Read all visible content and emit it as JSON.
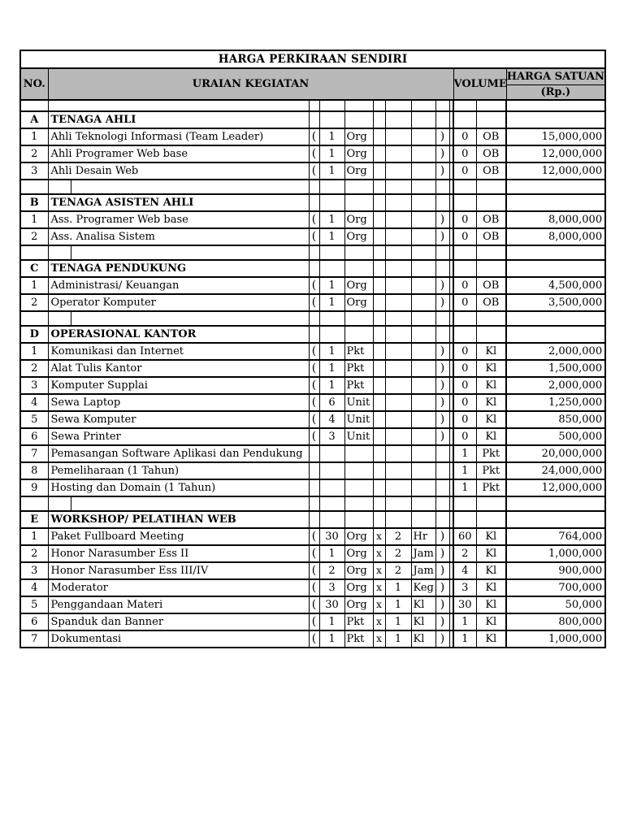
{
  "title": "HARGA PERKIRAAN SENDIRI",
  "header": {
    "no": "NO.",
    "uraian": "URAIAN KEGIATAN",
    "volume": "VOLUME",
    "harga_satuan": "HARGA SATUAN",
    "rp": "(Rp.)"
  },
  "colors": {
    "header_bg": "#b9b9b9",
    "border": "#000000",
    "page_bg": "#ffffff"
  },
  "table": {
    "rows": [
      {
        "t": "spacer1"
      },
      {
        "t": "section",
        "no": "A",
        "d": "TENAGA AHLI"
      },
      {
        "t": "item",
        "no": "1",
        "d": "Ahli Teknologi Informasi (Team Leader)",
        "po": "(",
        "q1": "1",
        "u1": "Org",
        "pc": ")",
        "vq": "0",
        "vu": "OB",
        "pr": "15,000,000"
      },
      {
        "t": "item",
        "no": "2",
        "d": "Ahli Programer Web base",
        "po": "(",
        "q1": "1",
        "u1": "Org",
        "pc": ")",
        "vq": "0",
        "vu": "OB",
        "pr": "12,000,000"
      },
      {
        "t": "item",
        "no": "3",
        "d": "Ahli Desain Web",
        "po": "(",
        "q1": "1",
        "u1": "Org",
        "pc": ")",
        "vq": "0",
        "vu": "OB",
        "pr": "12,000,000"
      },
      {
        "t": "spacer"
      },
      {
        "t": "section",
        "no": "B",
        "d": "TENAGA ASISTEN AHLI"
      },
      {
        "t": "item",
        "no": "1",
        "d": "Ass. Programer Web base",
        "po": "(",
        "q1": "1",
        "u1": "Org",
        "pc": ")",
        "vq": "0",
        "vu": "OB",
        "pr": "8,000,000"
      },
      {
        "t": "item",
        "no": "2",
        "d": "Ass. Analisa Sistem",
        "po": "(",
        "q1": "1",
        "u1": "Org",
        "pc": ")",
        "vq": "0",
        "vu": "OB",
        "pr": "8,000,000"
      },
      {
        "t": "spacer"
      },
      {
        "t": "section",
        "no": "C",
        "d": "TENAGA PENDUKUNG"
      },
      {
        "t": "item",
        "no": "1",
        "d": "Administrasi/ Keuangan",
        "po": "(",
        "q1": "1",
        "u1": "Org",
        "pc": ")",
        "vq": "0",
        "vu": "OB",
        "pr": "4,500,000"
      },
      {
        "t": "item",
        "no": "2",
        "d": "Operator Komputer",
        "po": "(",
        "q1": "1",
        "u1": "Org",
        "pc": ")",
        "vq": "0",
        "vu": "OB",
        "pr": "3,500,000"
      },
      {
        "t": "spacer"
      },
      {
        "t": "section",
        "no": "D",
        "d": "OPERASIONAL KANTOR"
      },
      {
        "t": "item",
        "no": "1",
        "d": "Komunikasi dan Internet",
        "po": "(",
        "q1": "1",
        "u1": "Pkt",
        "pc": ")",
        "vq": "0",
        "vu": "Kl",
        "pr": "2,000,000"
      },
      {
        "t": "item",
        "no": "2",
        "d": "Alat Tulis Kantor",
        "po": "(",
        "q1": "1",
        "u1": "Pkt",
        "pc": ")",
        "vq": "0",
        "vu": "Kl",
        "pr": "1,500,000"
      },
      {
        "t": "item",
        "no": "3",
        "d": "Komputer Supplai",
        "po": "(",
        "q1": "1",
        "u1": "Pkt",
        "pc": ")",
        "vq": "0",
        "vu": "Kl",
        "pr": "2,000,000"
      },
      {
        "t": "item",
        "no": "4",
        "d": "Sewa Laptop",
        "po": "(",
        "q1": "6",
        "u1": "Unit",
        "pc": ")",
        "vq": "0",
        "vu": "Kl",
        "pr": "1,250,000"
      },
      {
        "t": "item",
        "no": "5",
        "d": "Sewa Komputer",
        "po": "(",
        "q1": "4",
        "u1": "Unit",
        "pc": ")",
        "vq": "0",
        "vu": "Kl",
        "pr": "850,000"
      },
      {
        "t": "item",
        "no": "6",
        "d": "Sewa Printer",
        "po": "(",
        "q1": "3",
        "u1": "Unit",
        "pc": ")",
        "vq": "0",
        "vu": "Kl",
        "pr": "500,000"
      },
      {
        "t": "item",
        "no": "7",
        "d": "Pemasangan Software Aplikasi dan Pendukung",
        "vq": "1",
        "vu": "Pkt",
        "pr": "20,000,000"
      },
      {
        "t": "item",
        "no": "8",
        "d": "Pemeliharaan (1 Tahun)",
        "vq": "1",
        "vu": "Pkt",
        "pr": "24,000,000"
      },
      {
        "t": "item",
        "no": "9",
        "d": "Hosting dan Domain (1 Tahun)",
        "vq": "1",
        "vu": "Pkt",
        "pr": "12,000,000"
      },
      {
        "t": "spacer"
      },
      {
        "t": "section",
        "no": "E",
        "d": "WORKSHOP/ PELATIHAN WEB"
      },
      {
        "t": "item",
        "no": "1",
        "d": "Paket Fullboard Meeting",
        "po": "(",
        "q1": "30",
        "u1": "Org",
        "x": "x",
        "q2": "2",
        "u2": "Hr",
        "pc": ")",
        "vq": "60",
        "vu": "Kl",
        "pr": "764,000"
      },
      {
        "t": "item",
        "no": "2",
        "d": "Honor Narasumber Ess II",
        "po": "(",
        "q1": "1",
        "u1": "Org",
        "x": "x",
        "q2": "2",
        "u2": "Jam",
        "pc": ")",
        "vq": "2",
        "vu": "Kl",
        "pr": "1,000,000"
      },
      {
        "t": "item",
        "no": "3",
        "d": "Honor Narasumber Ess III/IV",
        "po": "(",
        "q1": "2",
        "u1": "Org",
        "x": "x",
        "q2": "2",
        "u2": "Jam",
        "pc": ")",
        "vq": "4",
        "vu": "Kl",
        "pr": "900,000"
      },
      {
        "t": "item",
        "no": "4",
        "d": "Moderator",
        "po": "(",
        "q1": "3",
        "u1": "Org",
        "x": "x",
        "q2": "1",
        "u2": "Keg",
        "pc": ")",
        "vq": "3",
        "vu": "Kl",
        "pr": "700,000"
      },
      {
        "t": "item",
        "no": "5",
        "d": "Penggandaan Materi",
        "po": "(",
        "q1": "30",
        "u1": "Org",
        "x": "x",
        "q2": "1",
        "u2": "Kl",
        "pc": ")",
        "vq": "30",
        "vu": "Kl",
        "pr": "50,000"
      },
      {
        "t": "item",
        "no": "6",
        "d": "Spanduk dan Banner",
        "po": "(",
        "q1": "1",
        "u1": "Pkt",
        "x": "x",
        "q2": "1",
        "u2": "Kl",
        "pc": ")",
        "vq": "1",
        "vu": "Kl",
        "pr": "800,000"
      },
      {
        "t": "item",
        "no": "7",
        "d": "Dokumentasi",
        "po": "(",
        "q1": "1",
        "u1": "Pkt",
        "x": "x",
        "q2": "1",
        "u2": "Kl",
        "pc": ")",
        "vq": "1",
        "vu": "Kl",
        "pr": "1,000,000"
      }
    ]
  }
}
